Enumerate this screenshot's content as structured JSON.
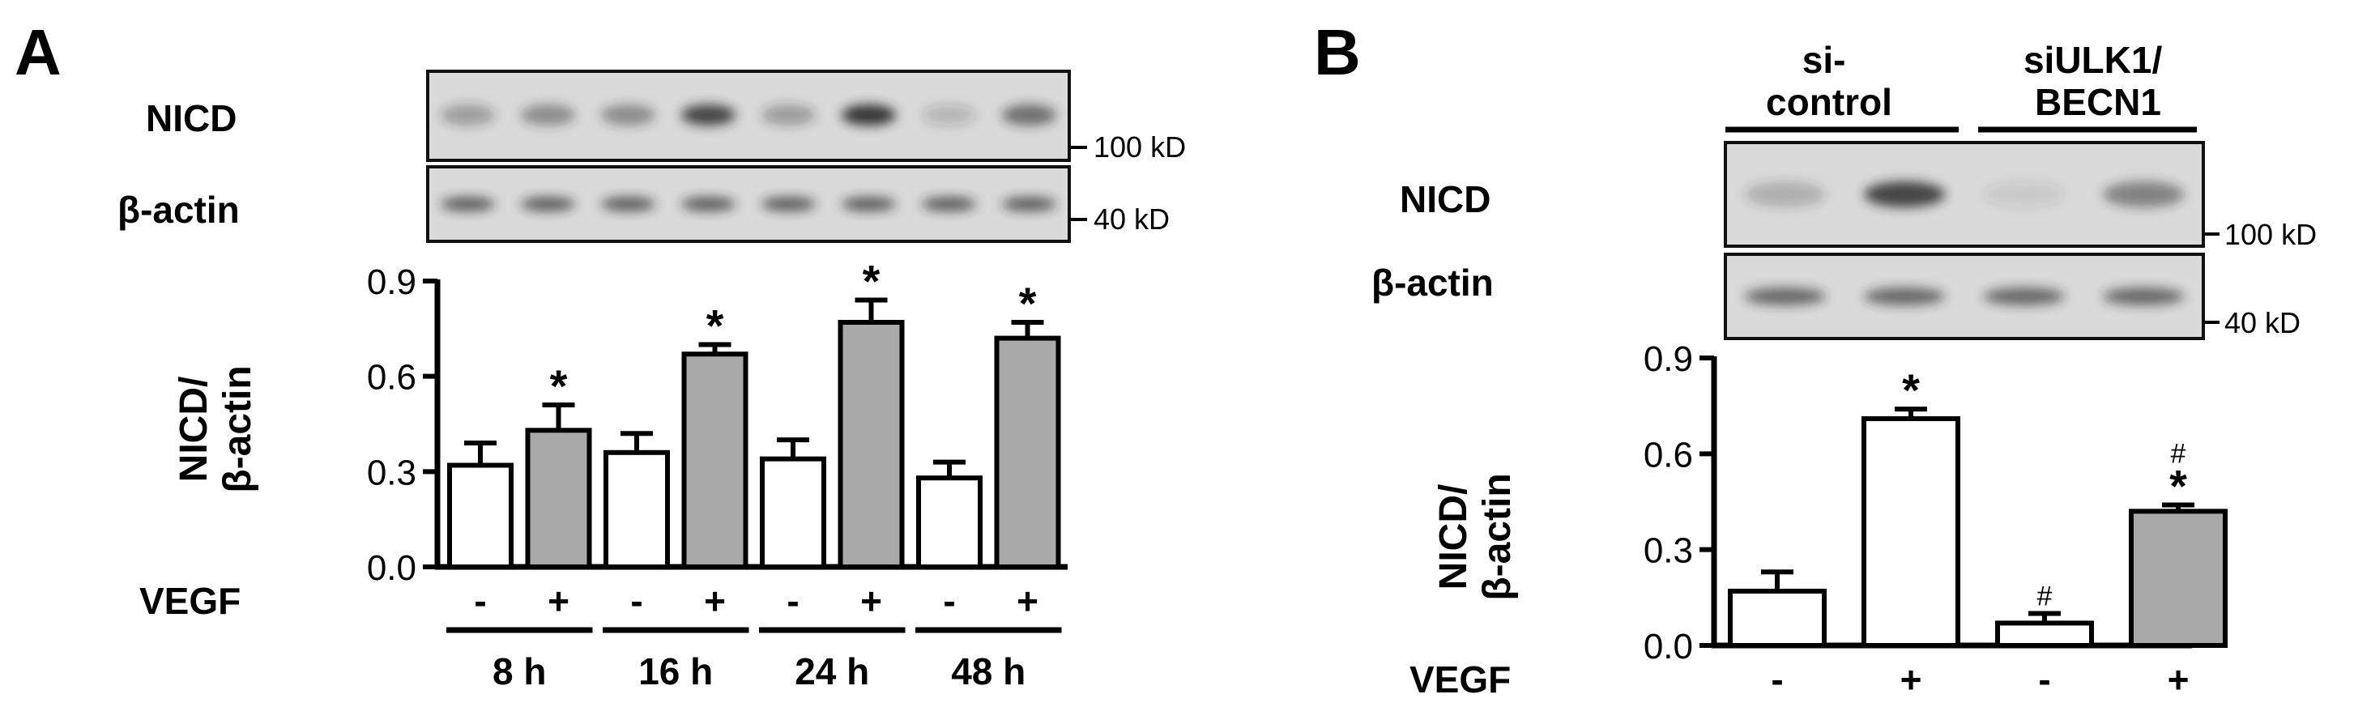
{
  "colors": {
    "control_bar": "#ffffff",
    "vegf_bar": "#a9a9a9",
    "axis": "#000000",
    "blot_background": "#dadada",
    "band": "#2a2a2a"
  },
  "panel_a": {
    "label": "A",
    "blot_labels": {
      "nicd": "NICD",
      "actin": "β-actin"
    },
    "markers": {
      "nicd": "100 kD",
      "actin": "40 kD"
    },
    "nicd_band_intensity": [
      0.35,
      0.45,
      0.45,
      0.85,
      0.35,
      0.95,
      0.2,
      0.6
    ],
    "actin_band_intensity": [
      0.7,
      0.7,
      0.7,
      0.7,
      0.7,
      0.7,
      0.7,
      0.7
    ]
  },
  "panel_b": {
    "label": "B",
    "group_labels": [
      "si-\ncontrol",
      "siULK1/\nBECN1"
    ],
    "blot_labels": {
      "nicd": "NICD",
      "actin": "β-actin"
    },
    "markers": {
      "nicd": "100 kD",
      "actin": "40 kD"
    },
    "nicd_band_intensity": [
      0.25,
      0.85,
      0.1,
      0.5
    ],
    "actin_band_intensity": [
      0.65,
      0.65,
      0.65,
      0.65
    ]
  },
  "chart_data": [
    {
      "type": "bar",
      "panel": "A",
      "ylabel": "NICD/\nβ-actin",
      "ylim": [
        0,
        0.9
      ],
      "yticks": [
        "0.0",
        "0.3",
        "0.6",
        "0.9"
      ],
      "row_label": "VEGF",
      "categories": [
        "-",
        "+",
        "-",
        "+",
        "-",
        "+",
        "-",
        "+"
      ],
      "groups": [
        "8 h",
        "16 h",
        "24 h",
        "48 h"
      ],
      "values": [
        0.32,
        0.43,
        0.36,
        0.67,
        0.34,
        0.77,
        0.28,
        0.72
      ],
      "errors": [
        0.07,
        0.08,
        0.06,
        0.03,
        0.06,
        0.07,
        0.05,
        0.05
      ],
      "annotations": [
        "",
        "*",
        "",
        "*",
        "",
        "*",
        "",
        "*"
      ],
      "fill": [
        "control",
        "vegf",
        "control",
        "vegf",
        "control",
        "vegf",
        "control",
        "vegf"
      ],
      "legend": "none"
    },
    {
      "type": "bar",
      "panel": "B",
      "ylabel": "NICD/\nβ-actin",
      "ylim": [
        0,
        0.9
      ],
      "yticks": [
        "0.0",
        "0.3",
        "0.6",
        "0.9"
      ],
      "row_label": "VEGF",
      "categories": [
        "-",
        "+",
        "-",
        "+"
      ],
      "values": [
        0.17,
        0.71,
        0.07,
        0.42
      ],
      "errors": [
        0.06,
        0.03,
        0.03,
        0.02
      ],
      "annotations": [
        {
          "hash": "",
          "star": ""
        },
        {
          "hash": "",
          "star": "*"
        },
        {
          "hash": "#",
          "star": ""
        },
        {
          "hash": "#",
          "star": "*"
        }
      ],
      "fill": [
        "control",
        "control",
        "control",
        "vegf"
      ],
      "legend": "none"
    }
  ]
}
